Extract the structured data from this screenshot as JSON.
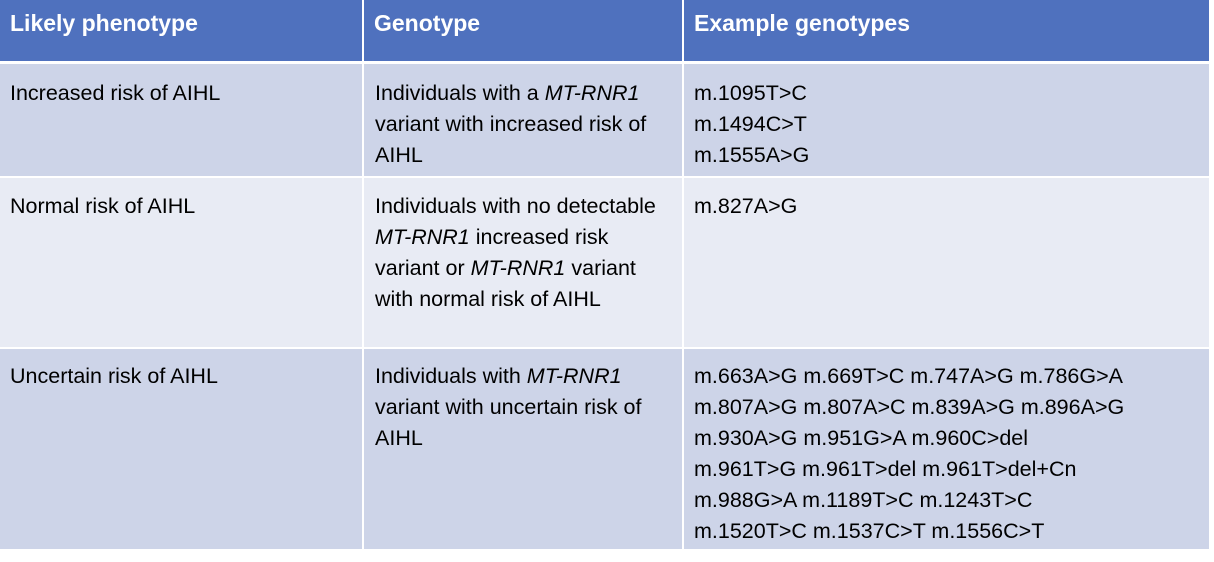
{
  "table": {
    "headers": [
      "Likely phenotype",
      "Genotype",
      "Example genotypes"
    ],
    "colors": {
      "header_bg": "#4F71BE",
      "row_dark": "#CDD4E8",
      "row_light": "#E8EBF4",
      "header_text": "#FFFFFF"
    },
    "rows": [
      {
        "phenotype": "Increased risk of AIHL",
        "genotype": [
          {
            "text": "Individuals with a ",
            "italic": false
          },
          {
            "text": "MT-RNR1",
            "italic": true
          },
          {
            "text": " variant with increased risk of AIHL",
            "italic": false
          }
        ],
        "examples": [
          "m.1095T>C",
          "m.1494C>T",
          "m.1555A>G"
        ]
      },
      {
        "phenotype": "Normal risk of AIHL",
        "genotype": [
          {
            "text": "Individuals with no detectable ",
            "italic": false
          },
          {
            "text": "MT-RNR1",
            "italic": true
          },
          {
            "text": " increased risk variant or ",
            "italic": false
          },
          {
            "text": "MT-RNR1",
            "italic": true
          },
          {
            "text": " variant with normal risk of AIHL",
            "italic": false
          }
        ],
        "examples": [
          "m.827A>G"
        ]
      },
      {
        "phenotype": "Uncertain risk of AIHL",
        "genotype": [
          {
            "text": "Individuals with ",
            "italic": false
          },
          {
            "text": "MT-RNR1",
            "italic": true
          },
          {
            "text": " variant with uncertain risk of AIHL",
            "italic": false
          }
        ],
        "examples": [
          "m.663A>G m.669T>C m.747A>G m.786G>A",
          "m.807A>G m.807A>C m.839A>G m.896A>G",
          "m.930A>G m.951G>A m.960C>del",
          "m.961T>G m.961T>del m.961T>del+Cn",
          "m.988G>A m.1189T>C m.1243T>C",
          "m.1520T>C m.1537C>T m.1556C>T"
        ]
      }
    ]
  }
}
